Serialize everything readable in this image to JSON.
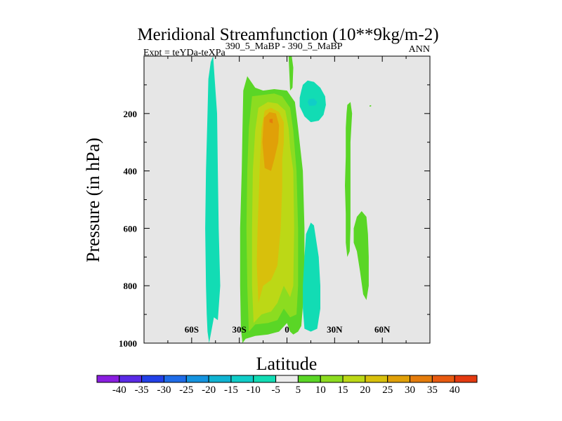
{
  "chart_data": {
    "type": "contour",
    "title": "Meridional Streamfunction (10**9kg/m-2)",
    "expt_label": "Expt = teYDa-teXPa",
    "expt_superscript": "390_5_MaBP - 390_5_MaBP",
    "season": "ANN",
    "xlabel": "Latitude",
    "ylabel": "Pressure (in hPa)",
    "xlim": [
      -90,
      90
    ],
    "ylim": [
      1000,
      0
    ],
    "x_ticks": [
      {
        "value": -60,
        "label": "60S"
      },
      {
        "value": -30,
        "label": "30S"
      },
      {
        "value": 0,
        "label": "0"
      },
      {
        "value": 30,
        "label": "30N"
      },
      {
        "value": 60,
        "label": "60N"
      }
    ],
    "y_ticks": [
      {
        "value": 200,
        "label": "200"
      },
      {
        "value": 400,
        "label": "400"
      },
      {
        "value": 600,
        "label": "600"
      },
      {
        "value": 800,
        "label": "800"
      },
      {
        "value": 1000,
        "label": "1000"
      }
    ],
    "background_color": "#e6e6e6",
    "colorbar": {
      "labels": [
        "-40",
        "-35",
        "-30",
        "-25",
        "-20",
        "-15",
        "-10",
        "-5",
        "5",
        "10",
        "15",
        "20",
        "25",
        "30",
        "35",
        "40"
      ],
      "colors": [
        "#8a1ee0",
        "#5a2ae6",
        "#2240e8",
        "#1f6ce8",
        "#1594e0",
        "#10b4d2",
        "#10cdc8",
        "#12dcb4",
        "#ececec",
        "#5ad626",
        "#8cdc20",
        "#bcd816",
        "#d8c00c",
        "#e0a008",
        "#e47c0c",
        "#e85a10",
        "#e43a10"
      ]
    },
    "regions": [
      {
        "name": "sh-negative-cell",
        "level": "-5",
        "color": "#12dcb4",
        "points": [
          [
            -49,
            1000
          ],
          [
            -50,
            960
          ],
          [
            -50.5,
            900
          ],
          [
            -51,
            800
          ],
          [
            -51.5,
            600
          ],
          [
            -51,
            400
          ],
          [
            -50,
            200
          ],
          [
            -49.5,
            80
          ],
          [
            -48,
            20
          ],
          [
            -46.5,
            0
          ],
          [
            -45.5,
            80
          ],
          [
            -44,
            200
          ],
          [
            -43.5,
            400
          ],
          [
            -43,
            600
          ],
          [
            -42,
            800
          ],
          [
            -43.5,
            920
          ],
          [
            -46,
            910
          ]
        ]
      },
      {
        "name": "main-positive-cell-5",
        "level": "5",
        "color": "#5ad626",
        "points": [
          [
            -28,
            1000
          ],
          [
            -29,
            950
          ],
          [
            -29.5,
            800
          ],
          [
            -29.5,
            600
          ],
          [
            -28.5,
            400
          ],
          [
            -28,
            250
          ],
          [
            -27.5,
            120
          ],
          [
            -25,
            70
          ],
          [
            -20,
            110
          ],
          [
            -15,
            120
          ],
          [
            -8,
            115
          ],
          [
            0,
            120
          ],
          [
            5,
            160
          ],
          [
            7,
            250
          ],
          [
            10,
            400
          ],
          [
            11,
            600
          ],
          [
            11,
            800
          ],
          [
            9,
            940
          ],
          [
            7,
            960
          ],
          [
            4,
            970
          ],
          [
            2,
            960
          ],
          [
            0,
            930
          ],
          [
            -5,
            960
          ],
          [
            -12,
            970
          ],
          [
            -20,
            975
          ],
          [
            -26,
            985
          ]
        ]
      },
      {
        "name": "main-positive-cell-10",
        "level": "10",
        "color": "#8cdc20",
        "points": [
          [
            -24,
            960
          ],
          [
            -25,
            800
          ],
          [
            -25.5,
            600
          ],
          [
            -25,
            400
          ],
          [
            -24,
            250
          ],
          [
            -22,
            140
          ],
          [
            -15,
            135
          ],
          [
            -8,
            130
          ],
          [
            -3,
            140
          ],
          [
            2,
            180
          ],
          [
            4,
            260
          ],
          [
            6,
            400
          ],
          [
            7,
            600
          ],
          [
            7,
            800
          ],
          [
            6,
            900
          ],
          [
            2,
            910
          ],
          [
            -2,
            880
          ],
          [
            -6,
            920
          ],
          [
            -12,
            930
          ],
          [
            -20,
            935
          ]
        ]
      },
      {
        "name": "main-positive-cell-15",
        "level": "15",
        "color": "#bcd816",
        "points": [
          [
            -21,
            930
          ],
          [
            -22,
            800
          ],
          [
            -22,
            600
          ],
          [
            -21.5,
            400
          ],
          [
            -20,
            260
          ],
          [
            -18,
            180
          ],
          [
            -12,
            160
          ],
          [
            -6,
            165
          ],
          [
            -1,
            190
          ],
          [
            1,
            250
          ],
          [
            2,
            320
          ],
          [
            4,
            400
          ],
          [
            4.5,
            600
          ],
          [
            4,
            800
          ],
          [
            2,
            840
          ],
          [
            -2,
            800
          ],
          [
            -6,
            860
          ],
          [
            -10,
            890
          ],
          [
            -16,
            900
          ]
        ]
      },
      {
        "name": "main-positive-cell-20",
        "level": "20",
        "color": "#d8c00c",
        "points": [
          [
            -18,
            860
          ],
          [
            -19,
            720
          ],
          [
            -18.5,
            600
          ],
          [
            -17.5,
            450
          ],
          [
            -17,
            360
          ],
          [
            -16,
            250
          ],
          [
            -14,
            190
          ],
          [
            -10,
            180
          ],
          [
            -5,
            195
          ],
          [
            -2,
            230
          ],
          [
            -2,
            300
          ],
          [
            -3,
            360
          ],
          [
            -3,
            460
          ],
          [
            -4,
            600
          ],
          [
            -6,
            730
          ],
          [
            -10,
            780
          ],
          [
            -15,
            800
          ]
        ]
      },
      {
        "name": "main-positive-cell-25",
        "level": "25",
        "color": "#e0a008",
        "points": [
          [
            -14,
            390
          ],
          [
            -15.5,
            300
          ],
          [
            -14.5,
            215
          ],
          [
            -11,
            195
          ],
          [
            -7,
            200
          ],
          [
            -5,
            240
          ],
          [
            -5.5,
            300
          ],
          [
            -8,
            360
          ],
          [
            -10,
            400
          ]
        ]
      },
      {
        "name": "main-positive-cell-30",
        "level": "30",
        "color": "#e47c0c",
        "points": [
          [
            -11,
            230
          ],
          [
            -11,
            220
          ],
          [
            -9,
            218
          ],
          [
            -9,
            234
          ]
        ]
      },
      {
        "name": "equatorial-column-top",
        "level": "5",
        "color": "#5ad626",
        "points": [
          [
            3,
            0
          ],
          [
            4,
            40
          ],
          [
            3.5,
            110
          ],
          [
            2,
            120
          ],
          [
            1.5,
            60
          ],
          [
            1,
            0
          ]
        ]
      },
      {
        "name": "nh-negative-cell-upper",
        "level": "-5",
        "color": "#12dcb4",
        "points": [
          [
            9,
            120
          ],
          [
            10,
            100
          ],
          [
            13,
            85
          ],
          [
            17,
            90
          ],
          [
            21,
            110
          ],
          [
            24,
            140
          ],
          [
            24.5,
            170
          ],
          [
            23,
            205
          ],
          [
            20,
            225
          ],
          [
            15,
            230
          ],
          [
            11,
            210
          ],
          [
            8,
            175
          ],
          [
            8,
            145
          ]
        ]
      },
      {
        "name": "nh-negative-cell-upper-inner",
        "level": "-10",
        "color": "#10cdc8",
        "points": [
          [
            13,
            160
          ],
          [
            14,
            150
          ],
          [
            17,
            148
          ],
          [
            19,
            160
          ],
          [
            18,
            172
          ],
          [
            14,
            173
          ]
        ]
      },
      {
        "name": "nh-negative-cell-lower",
        "level": "-5",
        "color": "#12dcb4",
        "points": [
          [
            15,
            580
          ],
          [
            17,
            590
          ],
          [
            20,
            700
          ],
          [
            21,
            800
          ],
          [
            21,
            880
          ],
          [
            19,
            950
          ],
          [
            15,
            960
          ],
          [
            11,
            950
          ],
          [
            10,
            880
          ],
          [
            10,
            800
          ],
          [
            11,
            700
          ],
          [
            12,
            620
          ]
        ]
      },
      {
        "name": "nh-positive-column",
        "level": "5",
        "color": "#5ad626",
        "points": [
          [
            38,
            170
          ],
          [
            40,
            160
          ],
          [
            41,
            200
          ],
          [
            40,
            300
          ],
          [
            40,
            400
          ],
          [
            40,
            500
          ],
          [
            40,
            600
          ],
          [
            39.5,
            680
          ],
          [
            38,
            700
          ],
          [
            37,
            650
          ],
          [
            37,
            550
          ],
          [
            36.5,
            450
          ],
          [
            37,
            350
          ],
          [
            37,
            250
          ],
          [
            37.5,
            200
          ]
        ]
      },
      {
        "name": "nh-positive-lobe",
        "level": "5",
        "color": "#5ad626",
        "points": [
          [
            42,
            600
          ],
          [
            44,
            560
          ],
          [
            47,
            540
          ],
          [
            50,
            560
          ],
          [
            51,
            620
          ],
          [
            51.5,
            700
          ],
          [
            51.5,
            800
          ],
          [
            50,
            850
          ],
          [
            48,
            830
          ],
          [
            46,
            750
          ],
          [
            44,
            680
          ],
          [
            42,
            650
          ]
        ]
      },
      {
        "name": "nh-small-dot",
        "level": "5",
        "color": "#5ad626",
        "points": [
          [
            52,
            172
          ],
          [
            53,
            171
          ],
          [
            53,
            175
          ],
          [
            52,
            176
          ]
        ]
      }
    ]
  }
}
